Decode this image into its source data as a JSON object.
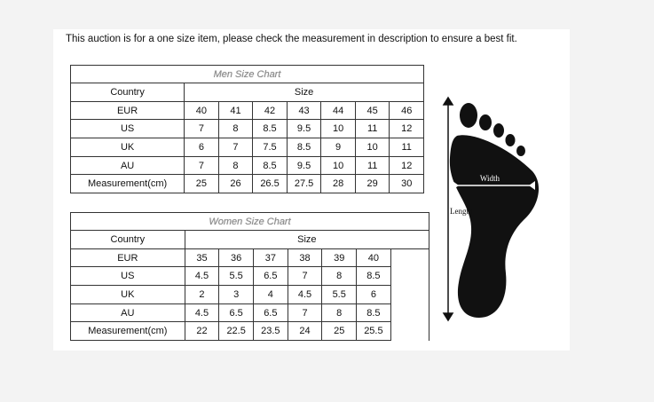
{
  "note": "This auction is for a one size item, please check the measurement in description to ensure a best fit.",
  "men": {
    "title": "Men Size Chart",
    "country_label": "Country",
    "size_label": "Size",
    "rows": [
      {
        "label": "EUR",
        "values": [
          "40",
          "41",
          "42",
          "43",
          "44",
          "45",
          "46"
        ]
      },
      {
        "label": "US",
        "values": [
          "7",
          "8",
          "8.5",
          "9.5",
          "10",
          "11",
          "12"
        ]
      },
      {
        "label": "UK",
        "values": [
          "6",
          "7",
          "7.5",
          "8.5",
          "9",
          "10",
          "11"
        ]
      },
      {
        "label": "AU",
        "values": [
          "7",
          "8",
          "8.5",
          "9.5",
          "10",
          "11",
          "12"
        ]
      },
      {
        "label": "Measurement(cm)",
        "values": [
          "25",
          "26",
          "26.5",
          "27.5",
          "28",
          "29",
          "30"
        ]
      }
    ]
  },
  "women": {
    "title": "Women Size Chart",
    "country_label": "Country",
    "size_label": "Size",
    "rows": [
      {
        "label": "EUR",
        "values": [
          "35",
          "36",
          "37",
          "38",
          "39",
          "40"
        ]
      },
      {
        "label": "US",
        "values": [
          "4.5",
          "5.5",
          "6.5",
          "7",
          "8",
          "8.5"
        ]
      },
      {
        "label": "UK",
        "values": [
          "2",
          "3",
          "4",
          "4.5",
          "5.5",
          "6"
        ]
      },
      {
        "label": "AU",
        "values": [
          "4.5",
          "6.5",
          "6.5",
          "7",
          "8",
          "8.5"
        ]
      },
      {
        "label": "Measurement(cm)",
        "values": [
          "22",
          "22.5",
          "23.5",
          "24",
          "25",
          "25.5"
        ]
      }
    ]
  },
  "diagram": {
    "width_label": "Width",
    "length_label": "Length"
  }
}
